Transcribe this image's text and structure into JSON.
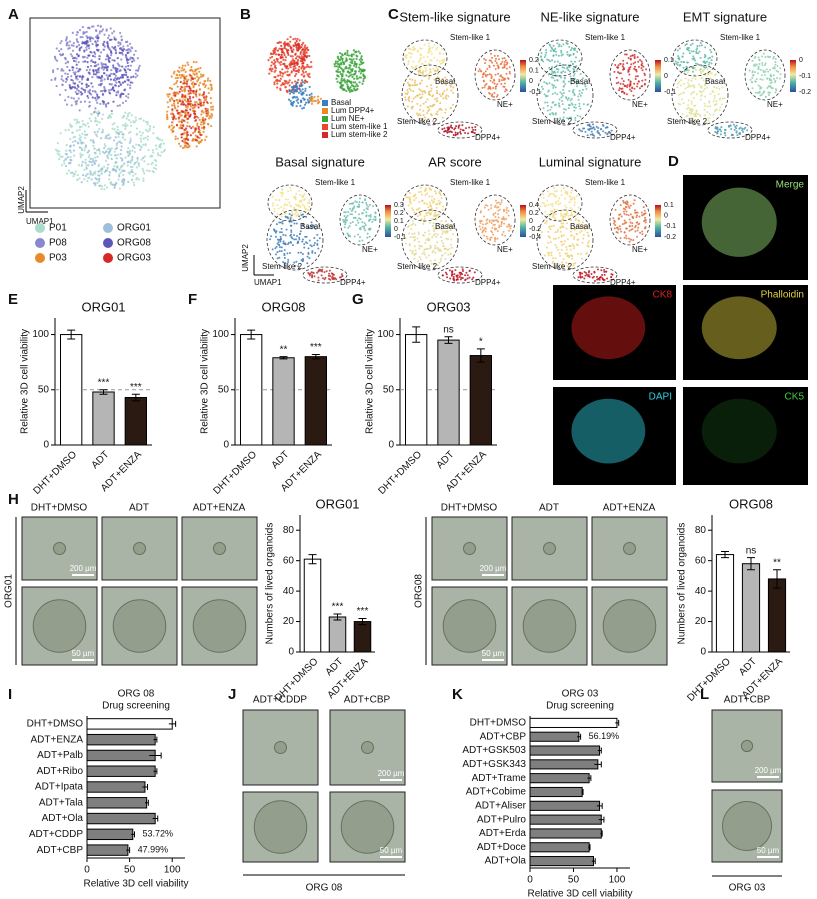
{
  "panels": {
    "letters": [
      "A",
      "B",
      "C",
      "D",
      "E",
      "F",
      "G",
      "H",
      "I",
      "J",
      "K",
      "L"
    ],
    "A": {
      "axis_x": "UMAP1",
      "axis_y": "UMAP2",
      "legend": [
        "P01",
        "ORG01",
        "P08",
        "ORG08",
        "P03",
        "ORG03"
      ],
      "legend_colors": [
        "#a9dccb",
        "#9cc0dc",
        "#8a86cf",
        "#5d55b8",
        "#e8892a",
        "#d62828"
      ]
    },
    "B": {
      "legend": [
        "Basal",
        "Lum DPP4+",
        "Lum NE+",
        "Lum stem-like 1",
        "Lum stem-like 2"
      ],
      "legend_colors": [
        "#3a7fc1",
        "#e8892a",
        "#3aa53a",
        "#e8472e",
        "#d62828"
      ]
    },
    "C": {
      "axis_x": "UMAP1",
      "axis_y": "UMAP2",
      "clusters": [
        "Stem-like 1",
        "Basal",
        "NE+",
        "Stem-like 2",
        "DPP4+"
      ],
      "signatures": [
        {
          "title": "Stem-like signature",
          "colorbar": [
            "0.2",
            "0.1",
            "0",
            "-0.1"
          ]
        },
        {
          "title": "NE-like signature",
          "colorbar": [
            "0.1",
            "0",
            "-0.1"
          ]
        },
        {
          "title": "EMT signature",
          "colorbar": [
            "0",
            "-0.1",
            "-0.2"
          ]
        },
        {
          "title": "Basal signature",
          "colorbar": [
            "0.3",
            "0.2",
            "0.1",
            "0",
            "-0.1"
          ]
        },
        {
          "title": "AR score",
          "colorbar": [
            "0.4",
            "0.2",
            "0",
            "-0.2",
            "-0.4"
          ]
        },
        {
          "title": "Luminal signature",
          "colorbar": [
            "0.1",
            "0",
            "-0.1",
            "-0.2"
          ]
        }
      ]
    },
    "D": {
      "channels": [
        "Merge",
        "CK8",
        "Phalloidin",
        "DAPI",
        "CK5"
      ],
      "channel_colors": [
        "#9be07a",
        "#e02020",
        "#e0d040",
        "#30d0e0",
        "#40d040"
      ]
    },
    "H": {
      "conditions": [
        "DHT+DMSO",
        "ADT",
        "ADT+ENZA"
      ],
      "rows": [
        "ORG01",
        "ORG08"
      ],
      "scale": [
        "200 µm",
        "50 µm"
      ]
    },
    "J": {
      "conditions": [
        "ADT+CDDP",
        "ADT+CBP"
      ],
      "sample": "ORG 08",
      "scale": [
        "200 µm",
        "50 µm"
      ]
    },
    "L": {
      "condition": "ADT+CBP",
      "sample": "ORG 03",
      "scale": [
        "200 µm",
        "50 µm"
      ]
    }
  },
  "chart_data": [
    {
      "type": "bar",
      "title": "ORG01",
      "ylabel": "Relative 3D cell viability",
      "categories": [
        "DHT+DMSO",
        "ADT",
        "ADT+ENZA"
      ],
      "values": [
        100,
        48,
        43
      ],
      "errors": [
        4,
        2,
        3
      ],
      "significance": [
        null,
        "***",
        "***"
      ],
      "colors": [
        "#ffffff",
        "#b5b5b5",
        "#2a1a12"
      ],
      "ylim": [
        0,
        115
      ],
      "yticks": [
        0,
        50,
        100
      ],
      "refline": 50
    },
    {
      "type": "bar",
      "title": "ORG08",
      "ylabel": "Relative 3D cell viability",
      "categories": [
        "DHT+DMSO",
        "ADT",
        "ADT+ENZA"
      ],
      "values": [
        100,
        79,
        80
      ],
      "errors": [
        4,
        1,
        2
      ],
      "significance": [
        null,
        "**",
        "***"
      ],
      "colors": [
        "#ffffff",
        "#b5b5b5",
        "#2a1a12"
      ],
      "ylim": [
        0,
        115
      ],
      "yticks": [
        0,
        50,
        100
      ],
      "refline": 50
    },
    {
      "type": "bar",
      "title": "ORG03",
      "ylabel": "Relative 3D cell viability",
      "categories": [
        "DHT+DMSO",
        "ADT",
        "ADT+ENZA"
      ],
      "values": [
        100,
        95,
        81
      ],
      "errors": [
        7,
        3,
        6
      ],
      "significance": [
        null,
        "ns",
        "*"
      ],
      "colors": [
        "#ffffff",
        "#b5b5b5",
        "#2a1a12"
      ],
      "ylim": [
        0,
        115
      ],
      "yticks": [
        0,
        50,
        100
      ],
      "refline": 50
    },
    {
      "type": "bar",
      "title": "ORG01",
      "ylabel": "Numbers of lived organoids",
      "categories": [
        "DHT+DMSO",
        "ADT",
        "ADT+ENZA"
      ],
      "values": [
        61,
        23,
        20
      ],
      "errors": [
        3,
        2,
        2
      ],
      "significance": [
        null,
        "***",
        "***"
      ],
      "colors": [
        "#ffffff",
        "#b5b5b5",
        "#2a1a12"
      ],
      "ylim": [
        0,
        90
      ],
      "yticks": [
        0,
        20,
        40,
        60,
        80
      ]
    },
    {
      "type": "bar",
      "title": "ORG08",
      "ylabel": "Numbers of lived organoids",
      "categories": [
        "DHT+DMSO",
        "ADT",
        "ADT+ENZA"
      ],
      "values": [
        64,
        58,
        48
      ],
      "errors": [
        2,
        4,
        6
      ],
      "significance": [
        null,
        "ns",
        "**"
      ],
      "colors": [
        "#ffffff",
        "#b5b5b5",
        "#2a1a12"
      ],
      "ylim": [
        0,
        90
      ],
      "yticks": [
        0,
        20,
        40,
        60,
        80
      ]
    },
    {
      "type": "barh",
      "title": "ORG 08",
      "subtitle": "Drug screening",
      "xlabel": "Relative 3D cell viability",
      "categories": [
        "DHT+DMSO",
        "ADT+ENZA",
        "ADT+Palb",
        "ADT+Ribo",
        "ADT+Ipata",
        "ADT+Tala",
        "ADT+Ola",
        "ADT+CDDP",
        "ADT+CBP"
      ],
      "values": [
        100,
        80,
        80,
        80,
        68,
        70,
        80,
        53.72,
        47.99
      ],
      "errors": [
        4,
        2,
        7,
        2,
        3,
        2,
        3,
        2,
        2
      ],
      "value_labels": [
        null,
        null,
        null,
        null,
        null,
        null,
        null,
        "53.72%",
        "47.99%"
      ],
      "colors": [
        "#ffffff",
        "#7f7f7f",
        "#7f7f7f",
        "#7f7f7f",
        "#7f7f7f",
        "#7f7f7f",
        "#7f7f7f",
        "#7f7f7f",
        "#7f7f7f"
      ],
      "xlim": [
        0,
        115
      ],
      "xticks": [
        0,
        50,
        100
      ]
    },
    {
      "type": "barh",
      "title": "ORG 03",
      "subtitle": "Drug screening",
      "xlabel": "Relative 3D cell viability",
      "categories": [
        "DHT+DMSO",
        "ADT+CBP",
        "ADT+GSK503",
        "ADT+GSK343",
        "ADT+Trame",
        "ADT+Cobime",
        "ADT+Aliser",
        "ADT+Pulro",
        "ADT+Erda",
        "ADT+Doce",
        "ADT+Ola"
      ],
      "values": [
        100,
        56.19,
        80,
        78,
        68,
        60,
        80,
        82,
        82,
        68,
        73
      ],
      "errors": [
        2,
        2,
        2,
        4,
        2,
        1,
        3,
        3,
        1,
        1,
        2
      ],
      "value_labels": [
        null,
        "56.19%",
        null,
        null,
        null,
        null,
        null,
        null,
        null,
        null,
        null
      ],
      "colors": [
        "#ffffff",
        "#7f7f7f",
        "#7f7f7f",
        "#7f7f7f",
        "#7f7f7f",
        "#7f7f7f",
        "#7f7f7f",
        "#7f7f7f",
        "#7f7f7f",
        "#7f7f7f",
        "#7f7f7f"
      ],
      "xlim": [
        0,
        115
      ],
      "xticks": [
        0,
        50,
        100
      ]
    }
  ]
}
